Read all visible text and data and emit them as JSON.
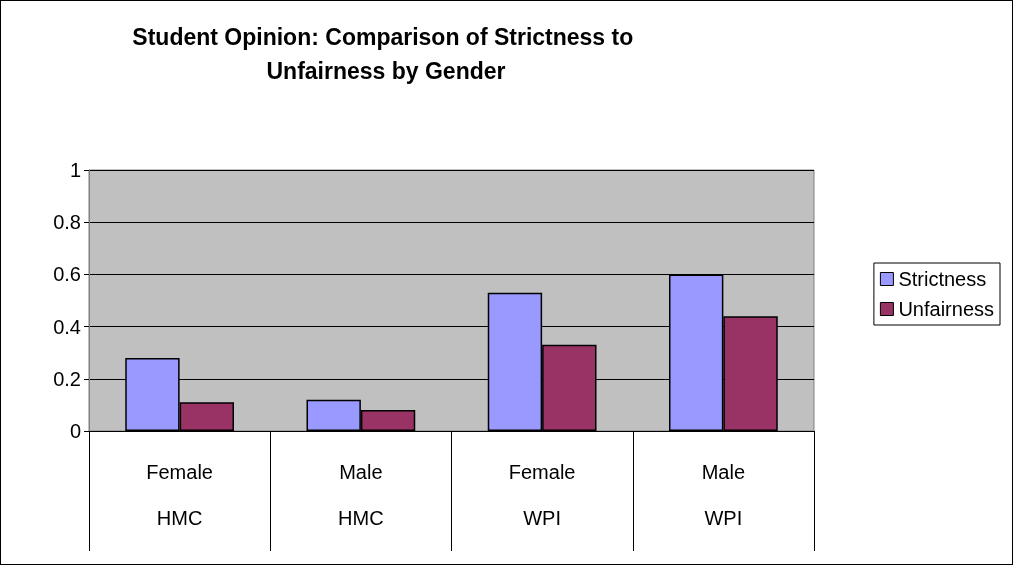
{
  "chart_data": {
    "type": "bar",
    "title": "Student Opinion: Comparison of Strictness to Unfairness by Gender",
    "categories": [
      "Female\nHMC",
      "Male\nHMC",
      "Female\nWPI",
      "Male\nWPI"
    ],
    "series": [
      {
        "name": "Strictness",
        "color": "#9999ff",
        "values": [
          0.28,
          0.12,
          0.53,
          0.6
        ]
      },
      {
        "name": "Unfairness",
        "color": "#993366",
        "values": [
          0.11,
          0.08,
          0.33,
          0.44
        ]
      }
    ],
    "ylim": [
      0,
      1
    ],
    "yticks": [
      0,
      0.2,
      0.4,
      0.6,
      0.8,
      1
    ],
    "grid": "y",
    "legend": "right"
  }
}
